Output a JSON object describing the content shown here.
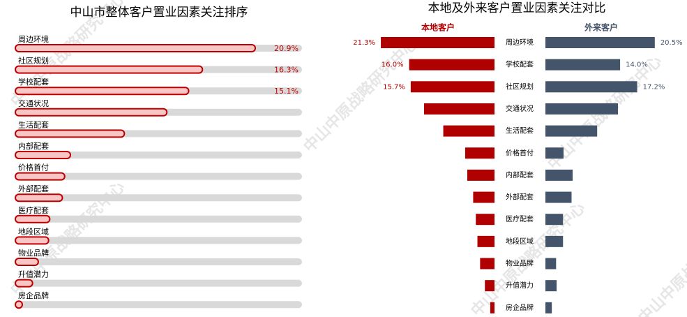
{
  "watermark": "中山中原战略研究中心",
  "chart_data": [
    {
      "type": "progress",
      "title": "中山市整体客户置业因素关注排序",
      "categories": [
        "周边环境",
        "社区规划",
        "学校配套",
        "交通状况",
        "生活配套",
        "内部配套",
        "价格首付",
        "外部配套",
        "医疗配套",
        "地段区域",
        "物业品牌",
        "升值潜力",
        "房企品牌"
      ],
      "values": [
        20.9,
        16.3,
        15.1,
        13.2,
        9.5,
        4.8,
        4.3,
        4.1,
        3.0,
        2.9,
        2.0,
        1.5,
        0.6
      ],
      "value_labels": [
        "20.9%",
        "16.3%",
        "15.1%",
        null,
        null,
        null,
        null,
        null,
        null,
        null,
        null,
        null,
        null
      ],
      "color": "#f9c6c6",
      "edge_color": "#c00000",
      "track_color": "#d9d9d9"
    },
    {
      "type": "butterfly",
      "title": "本地及外来客户置业因素关注对比",
      "categories": [
        "周边环境",
        "学校配套",
        "社区规划",
        "交通状况",
        "生活配套",
        "价格首付",
        "内部配套",
        "外部配套",
        "医疗配套",
        "地段区域",
        "物业品牌",
        "升值潜力",
        "房企品牌"
      ],
      "series": [
        {
          "name": "本地客户",
          "color": "#b00000",
          "values": [
            21.3,
            16.0,
            15.7,
            13.2,
            9.6,
            5.5,
            5.1,
            4.0,
            3.5,
            3.2,
            2.7,
            1.8,
            0.8
          ],
          "value_labels": [
            "21.3%",
            "16.0%",
            "15.7%",
            null,
            null,
            null,
            null,
            null,
            null,
            null,
            null,
            null,
            null
          ]
        },
        {
          "name": "外来客户",
          "color": "#44546a",
          "values": [
            20.5,
            14.0,
            17.2,
            13.6,
            9.7,
            3.4,
            5.1,
            4.9,
            3.3,
            3.3,
            2.0,
            2.1,
            1.2
          ],
          "value_labels": [
            "20.5%",
            "14.0%",
            "17.2%",
            null,
            null,
            null,
            null,
            null,
            null,
            null,
            null,
            null,
            null
          ]
        }
      ]
    }
  ]
}
